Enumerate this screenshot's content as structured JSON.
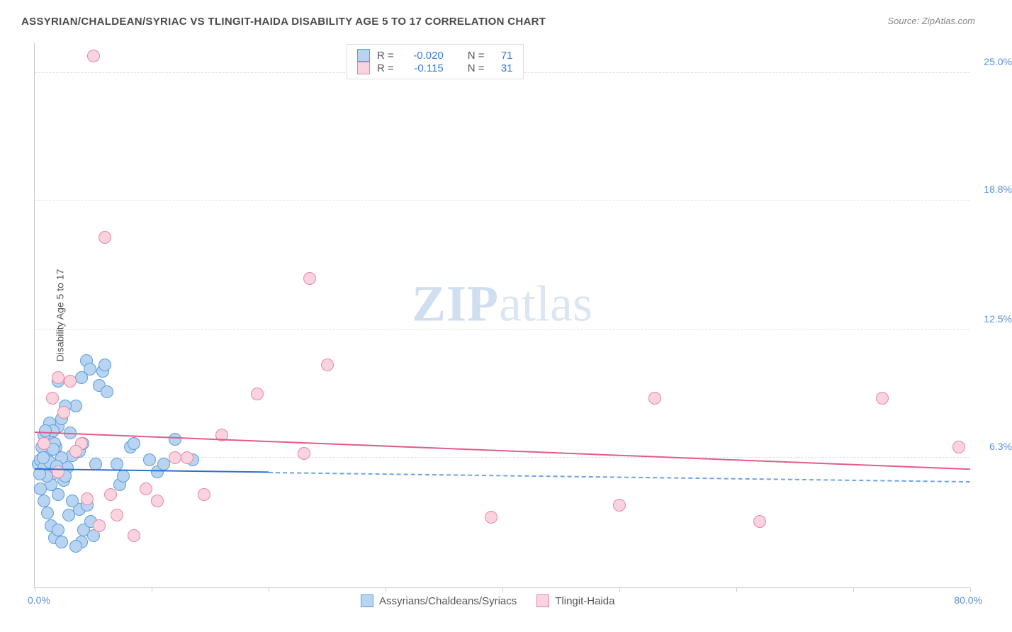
{
  "title": "ASSYRIAN/CHALDEAN/SYRIAC VS TLINGIT-HAIDA DISABILITY AGE 5 TO 17 CORRELATION CHART",
  "source": "Source: ZipAtlas.com",
  "watermark": {
    "bold": "ZIP",
    "rest": "atlas"
  },
  "yaxis_title": "Disability Age 5 to 17",
  "chart": {
    "type": "scatter-with-trend",
    "background": "#ffffff",
    "grid_color": "#e0e0e0",
    "axis_color": "#cccccc",
    "label_color": "#5a8fd6",
    "x": {
      "min": 0,
      "max": 80,
      "label_min": "0.0%",
      "label_max": "80.0%",
      "ticks": [
        0,
        10,
        20,
        30,
        40,
        50,
        60,
        70,
        80
      ]
    },
    "y": {
      "min": 0,
      "max": 26.5,
      "gridlines": [
        6.3,
        12.5,
        18.8,
        25.0
      ],
      "labels": [
        "6.3%",
        "12.5%",
        "18.8%",
        "25.0%"
      ]
    },
    "marker_radius": 9,
    "series": [
      {
        "name": "Assyrians/Chaldeans/Syriacs",
        "fill": "#b8d4f0",
        "stroke": "#5a9de0",
        "r_value": "-0.020",
        "n_value": "71",
        "trend": {
          "y_at_xmin": 5.7,
          "y_at_xmax": 5.1,
          "solid_until_x": 20,
          "solid_color": "#2e6fd1",
          "dash_color": "#6ea3e5"
        },
        "points": [
          [
            0.3,
            6.0
          ],
          [
            0.5,
            6.2
          ],
          [
            0.8,
            5.8
          ],
          [
            1.0,
            6.5
          ],
          [
            1.2,
            7.0
          ],
          [
            1.5,
            5.5
          ],
          [
            1.8,
            6.8
          ],
          [
            2.0,
            7.8
          ],
          [
            2.2,
            6.0
          ],
          [
            2.5,
            5.2
          ],
          [
            2.8,
            5.8
          ],
          [
            3.0,
            7.5
          ],
          [
            3.2,
            6.4
          ],
          [
            3.5,
            8.8
          ],
          [
            3.8,
            3.8
          ],
          [
            4.0,
            2.2
          ],
          [
            4.2,
            2.8
          ],
          [
            4.5,
            4.0
          ],
          [
            4.8,
            3.2
          ],
          [
            5.0,
            2.5
          ],
          [
            5.2,
            6.0
          ],
          [
            5.5,
            9.8
          ],
          [
            5.8,
            10.5
          ],
          [
            6.0,
            10.8
          ],
          [
            6.2,
            9.5
          ],
          [
            1.0,
            7.2
          ],
          [
            1.3,
            8.0
          ],
          [
            1.6,
            7.6
          ],
          [
            2.3,
            8.2
          ],
          [
            2.6,
            8.8
          ],
          [
            0.8,
            7.4
          ],
          [
            1.1,
            6.6
          ],
          [
            1.4,
            5.0
          ],
          [
            1.7,
            7.0
          ],
          [
            2.0,
            4.5
          ],
          [
            2.3,
            6.3
          ],
          [
            2.6,
            5.4
          ],
          [
            2.9,
            3.5
          ],
          [
            3.2,
            4.2
          ],
          [
            3.5,
            2.0
          ],
          [
            3.8,
            6.6
          ],
          [
            4.1,
            7.0
          ],
          [
            4.4,
            11.0
          ],
          [
            4.7,
            10.6
          ],
          [
            7.0,
            6.0
          ],
          [
            7.3,
            5.0
          ],
          [
            7.6,
            5.4
          ],
          [
            8.2,
            6.8
          ],
          [
            8.5,
            7.0
          ],
          [
            9.8,
            6.2
          ],
          [
            10.5,
            5.6
          ],
          [
            11.0,
            6.0
          ],
          [
            12.0,
            7.2
          ],
          [
            13.5,
            6.2
          ],
          [
            0.5,
            4.8
          ],
          [
            0.8,
            4.2
          ],
          [
            1.1,
            3.6
          ],
          [
            1.4,
            3.0
          ],
          [
            1.7,
            2.4
          ],
          [
            2.0,
            2.8
          ],
          [
            2.3,
            2.2
          ],
          [
            0.6,
            6.8
          ],
          [
            0.9,
            7.6
          ],
          [
            4.0,
            10.2
          ],
          [
            2.0,
            10.0
          ],
          [
            1.0,
            5.4
          ],
          [
            1.3,
            6.1
          ],
          [
            1.6,
            6.7
          ],
          [
            1.9,
            5.9
          ],
          [
            0.4,
            5.5
          ],
          [
            0.7,
            6.3
          ]
        ]
      },
      {
        "name": "Tlingit-Haida",
        "fill": "#f9d3de",
        "stroke": "#e985a7",
        "r_value": "-0.115",
        "n_value": "31",
        "trend": {
          "y_at_xmin": 7.5,
          "y_at_xmax": 5.7,
          "solid_until_x": 80,
          "solid_color": "#e15b8c",
          "dash_color": "#e15b8c"
        },
        "points": [
          [
            5.0,
            25.8
          ],
          [
            6.0,
            17.0
          ],
          [
            23.5,
            15.0
          ],
          [
            25.0,
            10.8
          ],
          [
            53.0,
            9.2
          ],
          [
            72.5,
            9.2
          ],
          [
            79.0,
            6.8
          ],
          [
            19.0,
            9.4
          ],
          [
            16.0,
            7.4
          ],
          [
            23.0,
            6.5
          ],
          [
            39.0,
            3.4
          ],
          [
            62.0,
            3.2
          ],
          [
            50.0,
            4.0
          ],
          [
            2.5,
            8.5
          ],
          [
            1.5,
            9.2
          ],
          [
            2.0,
            10.2
          ],
          [
            3.0,
            10.0
          ],
          [
            4.0,
            7.0
          ],
          [
            4.5,
            4.3
          ],
          [
            5.5,
            3.0
          ],
          [
            6.5,
            4.5
          ],
          [
            7.0,
            3.5
          ],
          [
            8.5,
            2.5
          ],
          [
            9.5,
            4.8
          ],
          [
            10.5,
            4.2
          ],
          [
            12.0,
            6.3
          ],
          [
            13.0,
            6.3
          ],
          [
            14.5,
            4.5
          ],
          [
            3.5,
            6.6
          ],
          [
            2.0,
            5.6
          ],
          [
            0.8,
            7.0
          ]
        ]
      }
    ]
  },
  "legend_top": {
    "r_label": "R =",
    "n_label": "N ="
  },
  "legend_bottom_order": [
    0,
    1
  ]
}
